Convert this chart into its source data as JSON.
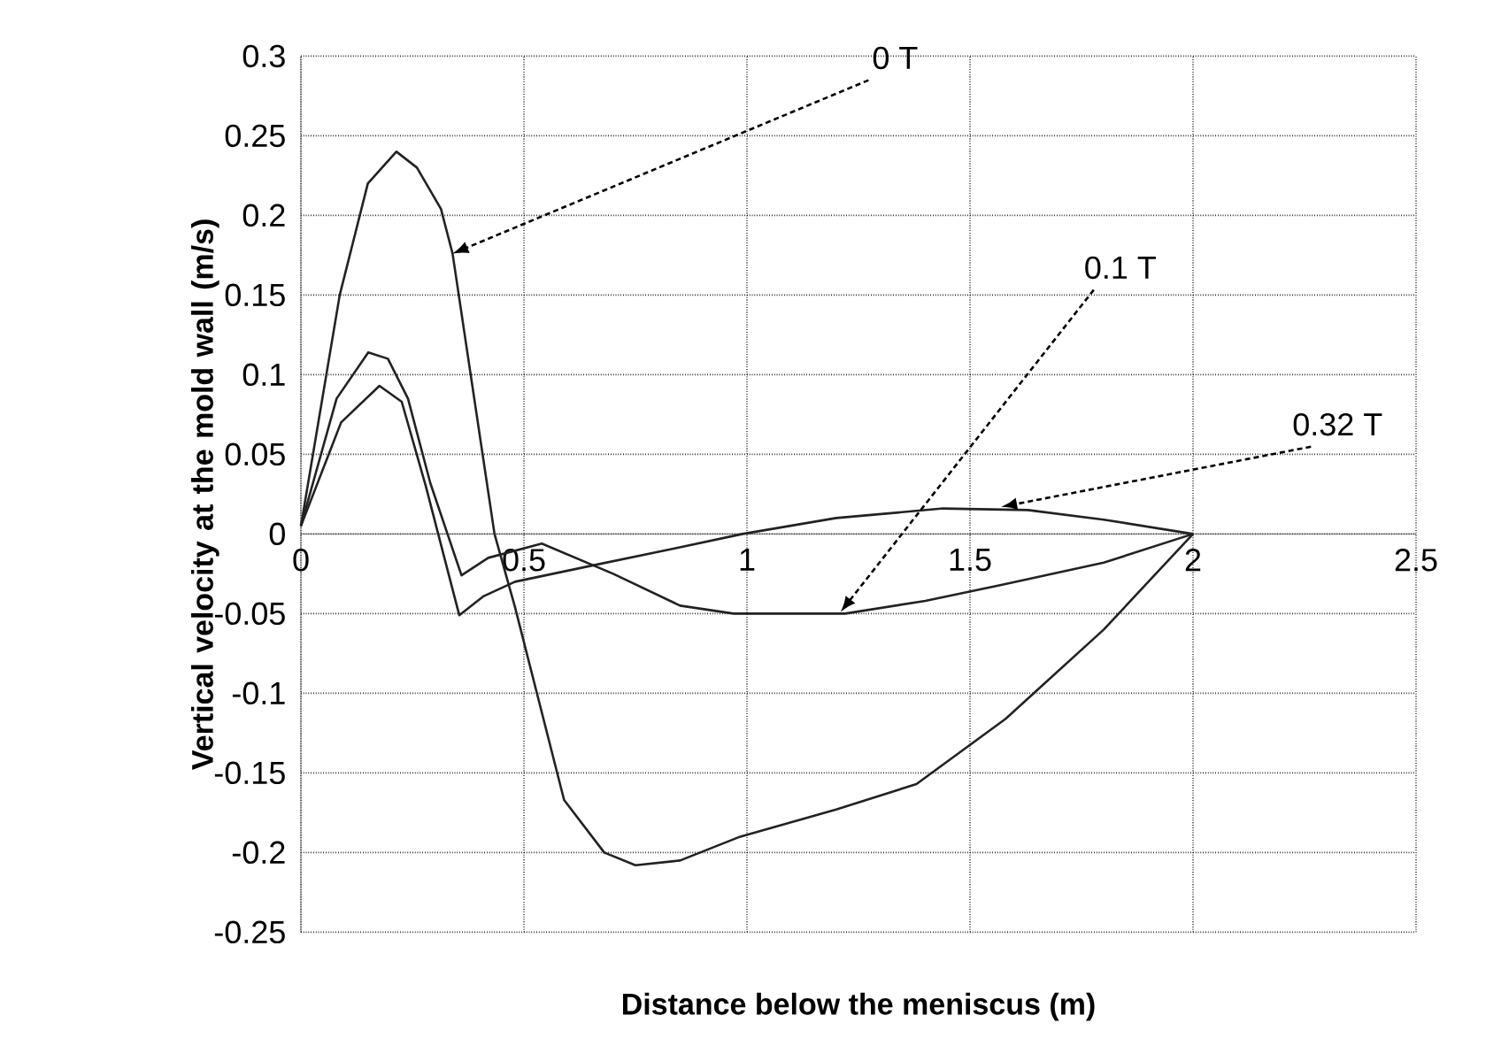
{
  "chart_data": {
    "type": "line",
    "xlabel": "Distance below the meniscus (m)",
    "ylabel": "Vertical velocity at the mold wall (m/s)",
    "series": [
      {
        "color": "#222222",
        "x": [
          0,
          0.087,
          0.15,
          0.214,
          0.26,
          0.314,
          0.34,
          0.434,
          0.48,
          0.59,
          0.68,
          0.75,
          0.85,
          0.985,
          1.2,
          1.38,
          1.58,
          1.8,
          2
        ],
        "values": [
          0.005,
          0.15,
          0.22,
          0.24,
          0.23,
          0.204,
          0.176,
          0.0,
          -0.046,
          -0.167,
          -0.2,
          -0.208,
          -0.205,
          -0.19,
          -0.173,
          -0.157,
          -0.116,
          -0.06,
          0
        ]
      },
      {
        "color": "#222222",
        "x": [
          0,
          0.08,
          0.151,
          0.195,
          0.24,
          0.29,
          0.36,
          0.42,
          0.54,
          0.7,
          0.85,
          0.97,
          1.22,
          1.4,
          1.57,
          1.8,
          2
        ],
        "values": [
          0.005,
          0.085,
          0.114,
          0.11,
          0.085,
          0.032,
          -0.026,
          -0.015,
          -0.006,
          -0.025,
          -0.045,
          -0.05,
          -0.05,
          -0.042,
          -0.032,
          -0.018,
          0
        ]
      },
      {
        "color": "#222222",
        "x": [
          0,
          0.09,
          0.176,
          0.226,
          0.28,
          0.355,
          0.41,
          0.48,
          0.65,
          0.84,
          0.99,
          1.2,
          1.44,
          1.63,
          1.8,
          2
        ],
        "values": [
          0.005,
          0.07,
          0.093,
          0.083,
          0.03,
          -0.051,
          -0.039,
          -0.03,
          -0.02,
          -0.009,
          0,
          0.01,
          0.016,
          0.015,
          0.009,
          0
        ]
      }
    ],
    "xlim": [
      0,
      2.5
    ],
    "ylim": [
      -0.25,
      0.3
    ],
    "xticks": [
      0,
      0.5,
      1,
      1.5,
      2,
      2.5
    ],
    "yticks": [
      -0.25,
      -0.2,
      -0.15,
      -0.1,
      -0.05,
      0,
      0.05,
      0.1,
      0.15,
      0.2,
      0.25,
      0.3
    ],
    "grid": true,
    "marker": "none",
    "line_style": "solid",
    "annotations": [
      {
        "text": "0 T",
        "x": 0.34,
        "y": 0.176
      },
      {
        "text": "0.1 T",
        "x": 1.21,
        "y": -0.049
      },
      {
        "text": "0.32 T",
        "x": 1.57,
        "y": 0.017
      }
    ]
  }
}
